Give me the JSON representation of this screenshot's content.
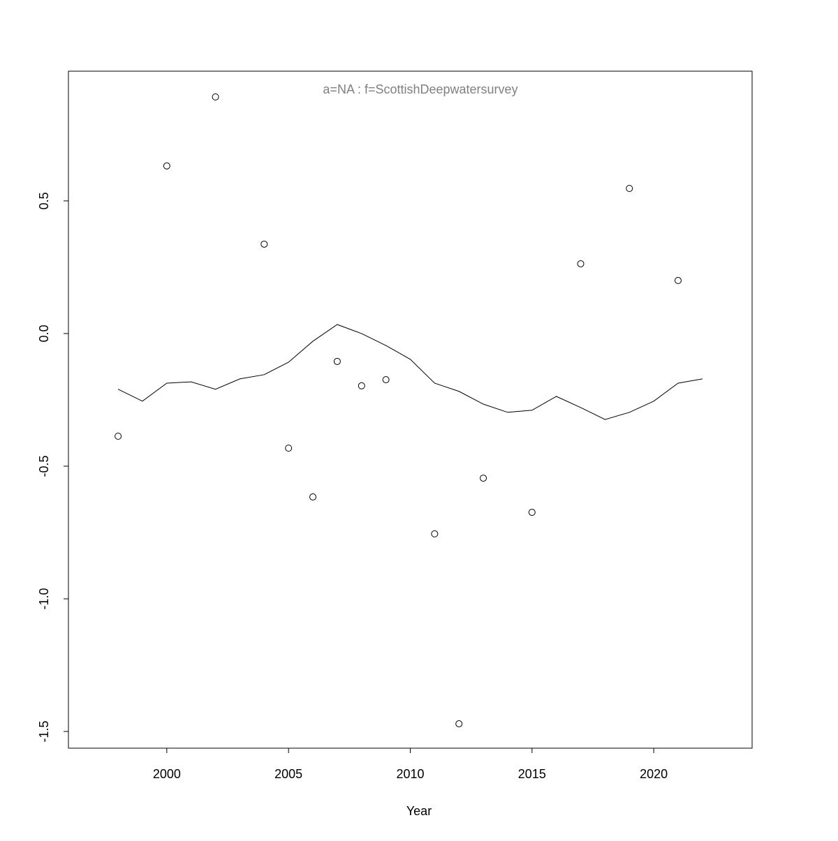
{
  "chart_data": {
    "type": "line",
    "title": "a=NA  :  f=ScottishDeepwatersurvey",
    "x_label": "Year",
    "x": [
      1998,
      1999,
      2000,
      2001,
      2002,
      2003,
      2004,
      2005,
      2006,
      2007,
      2008,
      2009,
      2010,
      2011,
      2012,
      2013,
      2014,
      2015,
      2016,
      2017,
      2018,
      2019,
      2020,
      2021,
      2022
    ],
    "series": [
      {
        "type": "scatter",
        "color": "#000000",
        "values": [
          -0.387,
          null,
          0.632,
          null,
          0.892,
          null,
          0.337,
          -0.432,
          -0.616,
          -0.105,
          -0.197,
          -0.174,
          null,
          -0.755,
          -1.471,
          -0.545,
          null,
          -0.674,
          null,
          0.263,
          null,
          0.547,
          null,
          0.2,
          null
        ]
      },
      {
        "type": "line",
        "color": "#000000",
        "values": [
          -0.21,
          -0.255,
          -0.187,
          -0.182,
          -0.21,
          -0.171,
          -0.155,
          -0.108,
          -0.029,
          0.034,
          0.0,
          -0.045,
          -0.097,
          -0.187,
          -0.218,
          -0.266,
          -0.297,
          -0.289,
          -0.237,
          -0.279,
          -0.324,
          -0.297,
          -0.255,
          -0.187,
          -0.171
        ]
      }
    ],
    "xlim": [
      1995.96,
      2024.04
    ],
    "ylim": [
      -1.563,
      0.989
    ],
    "xticks": [
      2000,
      2005,
      2010,
      2015,
      2020
    ],
    "yticks": [
      -1.5,
      {
        "value": -1.0,
        "label": "-1.0"
      },
      -0.5,
      {
        "value": 0,
        "label": "0.0"
      },
      0.5
    ],
    "title_color": "#808080"
  }
}
